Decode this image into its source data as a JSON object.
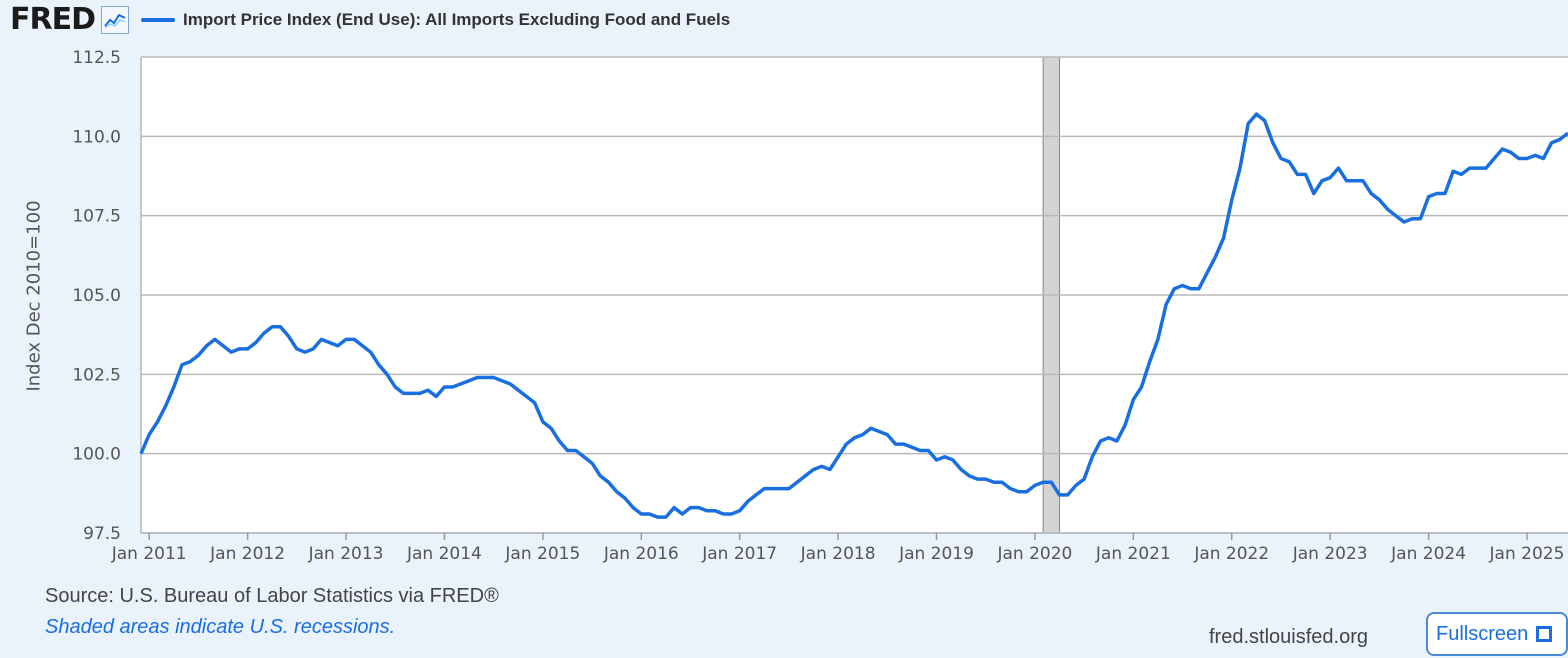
{
  "header": {
    "logo_text": "FRED",
    "graph_icon": "line-graph-icon"
  },
  "chart_data": {
    "type": "line",
    "series": [
      {
        "name": "Import Price Index (End Use): All Imports Excluding Food and Fuels",
        "color": "#1a6fe0",
        "points": [
          [
            "2010-12",
            100.0
          ],
          [
            "2011-01",
            100.6
          ],
          [
            "2011-02",
            101.0
          ],
          [
            "2011-03",
            101.5
          ],
          [
            "2011-04",
            102.1
          ],
          [
            "2011-05",
            102.8
          ],
          [
            "2011-06",
            102.9
          ],
          [
            "2011-07",
            103.1
          ],
          [
            "2011-08",
            103.4
          ],
          [
            "2011-09",
            103.6
          ],
          [
            "2011-10",
            103.4
          ],
          [
            "2011-11",
            103.2
          ],
          [
            "2011-12",
            103.3
          ],
          [
            "2012-01",
            103.3
          ],
          [
            "2012-02",
            103.5
          ],
          [
            "2012-03",
            103.8
          ],
          [
            "2012-04",
            104.0
          ],
          [
            "2012-05",
            104.0
          ],
          [
            "2012-06",
            103.7
          ],
          [
            "2012-07",
            103.3
          ],
          [
            "2012-08",
            103.2
          ],
          [
            "2012-09",
            103.3
          ],
          [
            "2012-10",
            103.6
          ],
          [
            "2012-11",
            103.5
          ],
          [
            "2012-12",
            103.4
          ],
          [
            "2013-01",
            103.6
          ],
          [
            "2013-02",
            103.6
          ],
          [
            "2013-03",
            103.4
          ],
          [
            "2013-04",
            103.2
          ],
          [
            "2013-05",
            102.8
          ],
          [
            "2013-06",
            102.5
          ],
          [
            "2013-07",
            102.1
          ],
          [
            "2013-08",
            101.9
          ],
          [
            "2013-09",
            101.9
          ],
          [
            "2013-10",
            101.9
          ],
          [
            "2013-11",
            102.0
          ],
          [
            "2013-12",
            101.8
          ],
          [
            "2014-01",
            102.1
          ],
          [
            "2014-02",
            102.1
          ],
          [
            "2014-03",
            102.2
          ],
          [
            "2014-04",
            102.3
          ],
          [
            "2014-05",
            102.4
          ],
          [
            "2014-06",
            102.4
          ],
          [
            "2014-07",
            102.4
          ],
          [
            "2014-08",
            102.3
          ],
          [
            "2014-09",
            102.2
          ],
          [
            "2014-10",
            102.0
          ],
          [
            "2014-11",
            101.8
          ],
          [
            "2014-12",
            101.6
          ],
          [
            "2015-01",
            101.0
          ],
          [
            "2015-02",
            100.8
          ],
          [
            "2015-03",
            100.4
          ],
          [
            "2015-04",
            100.1
          ],
          [
            "2015-05",
            100.1
          ],
          [
            "2015-06",
            99.9
          ],
          [
            "2015-07",
            99.7
          ],
          [
            "2015-08",
            99.3
          ],
          [
            "2015-09",
            99.1
          ],
          [
            "2015-10",
            98.8
          ],
          [
            "2015-11",
            98.6
          ],
          [
            "2015-12",
            98.3
          ],
          [
            "2016-01",
            98.1
          ],
          [
            "2016-02",
            98.1
          ],
          [
            "2016-03",
            98.0
          ],
          [
            "2016-04",
            98.0
          ],
          [
            "2016-05",
            98.3
          ],
          [
            "2016-06",
            98.1
          ],
          [
            "2016-07",
            98.3
          ],
          [
            "2016-08",
            98.3
          ],
          [
            "2016-09",
            98.2
          ],
          [
            "2016-10",
            98.2
          ],
          [
            "2016-11",
            98.1
          ],
          [
            "2016-12",
            98.1
          ],
          [
            "2017-01",
            98.2
          ],
          [
            "2017-02",
            98.5
          ],
          [
            "2017-03",
            98.7
          ],
          [
            "2017-04",
            98.9
          ],
          [
            "2017-05",
            98.9
          ],
          [
            "2017-06",
            98.9
          ],
          [
            "2017-07",
            98.9
          ],
          [
            "2017-08",
            99.1
          ],
          [
            "2017-09",
            99.3
          ],
          [
            "2017-10",
            99.5
          ],
          [
            "2017-11",
            99.6
          ],
          [
            "2017-12",
            99.5
          ],
          [
            "2018-01",
            99.9
          ],
          [
            "2018-02",
            100.3
          ],
          [
            "2018-03",
            100.5
          ],
          [
            "2018-04",
            100.6
          ],
          [
            "2018-05",
            100.8
          ],
          [
            "2018-06",
            100.7
          ],
          [
            "2018-07",
            100.6
          ],
          [
            "2018-08",
            100.3
          ],
          [
            "2018-09",
            100.3
          ],
          [
            "2018-10",
            100.2
          ],
          [
            "2018-11",
            100.1
          ],
          [
            "2018-12",
            100.1
          ],
          [
            "2019-01",
            99.8
          ],
          [
            "2019-02",
            99.9
          ],
          [
            "2019-03",
            99.8
          ],
          [
            "2019-04",
            99.5
          ],
          [
            "2019-05",
            99.3
          ],
          [
            "2019-06",
            99.2
          ],
          [
            "2019-07",
            99.2
          ],
          [
            "2019-08",
            99.1
          ],
          [
            "2019-09",
            99.1
          ],
          [
            "2019-10",
            98.9
          ],
          [
            "2019-11",
            98.8
          ],
          [
            "2019-12",
            98.8
          ],
          [
            "2020-01",
            99.0
          ],
          [
            "2020-02",
            99.1
          ],
          [
            "2020-03",
            99.1
          ],
          [
            "2020-04",
            98.7
          ],
          [
            "2020-05",
            98.7
          ],
          [
            "2020-06",
            99.0
          ],
          [
            "2020-07",
            99.2
          ],
          [
            "2020-08",
            99.9
          ],
          [
            "2020-09",
            100.4
          ],
          [
            "2020-10",
            100.5
          ],
          [
            "2020-11",
            100.4
          ],
          [
            "2020-12",
            100.9
          ],
          [
            "2021-01",
            101.7
          ],
          [
            "2021-02",
            102.1
          ],
          [
            "2021-03",
            102.9
          ],
          [
            "2021-04",
            103.6
          ],
          [
            "2021-05",
            104.7
          ],
          [
            "2021-06",
            105.2
          ],
          [
            "2021-07",
            105.3
          ],
          [
            "2021-08",
            105.2
          ],
          [
            "2021-09",
            105.2
          ],
          [
            "2021-10",
            105.7
          ],
          [
            "2021-11",
            106.2
          ],
          [
            "2021-12",
            106.8
          ],
          [
            "2022-01",
            108.0
          ],
          [
            "2022-02",
            109.0
          ],
          [
            "2022-03",
            110.4
          ],
          [
            "2022-04",
            110.7
          ],
          [
            "2022-05",
            110.5
          ],
          [
            "2022-06",
            109.8
          ],
          [
            "2022-07",
            109.3
          ],
          [
            "2022-08",
            109.2
          ],
          [
            "2022-09",
            108.8
          ],
          [
            "2022-10",
            108.8
          ],
          [
            "2022-11",
            108.2
          ],
          [
            "2022-12",
            108.6
          ],
          [
            "2023-01",
            108.7
          ],
          [
            "2023-02",
            109.0
          ],
          [
            "2023-03",
            108.6
          ],
          [
            "2023-04",
            108.6
          ],
          [
            "2023-05",
            108.6
          ],
          [
            "2023-06",
            108.2
          ],
          [
            "2023-07",
            108.0
          ],
          [
            "2023-08",
            107.7
          ],
          [
            "2023-09",
            107.5
          ],
          [
            "2023-10",
            107.3
          ],
          [
            "2023-11",
            107.4
          ],
          [
            "2023-12",
            107.4
          ],
          [
            "2024-01",
            108.1
          ],
          [
            "2024-02",
            108.2
          ],
          [
            "2024-03",
            108.2
          ],
          [
            "2024-04",
            108.9
          ],
          [
            "2024-05",
            108.8
          ],
          [
            "2024-06",
            109.0
          ],
          [
            "2024-07",
            109.0
          ],
          [
            "2024-08",
            109.0
          ],
          [
            "2024-09",
            109.3
          ],
          [
            "2024-10",
            109.6
          ],
          [
            "2024-11",
            109.5
          ],
          [
            "2024-12",
            109.3
          ],
          [
            "2025-01",
            109.3
          ],
          [
            "2025-02",
            109.4
          ],
          [
            "2025-03",
            109.3
          ],
          [
            "2025-04",
            109.8
          ],
          [
            "2025-05",
            109.9
          ],
          [
            "2025-06",
            110.1
          ]
        ]
      }
    ],
    "xlabel": "",
    "ylabel": "Index Dec 2010=100",
    "x_range": [
      "2010-12",
      "2025-06"
    ],
    "ylim": [
      97.5,
      112.5
    ],
    "y_ticks": [
      "97.5",
      "100.0",
      "102.5",
      "105.0",
      "107.5",
      "110.0",
      "112.5"
    ],
    "x_ticks": [
      "Jan 2011",
      "Jan 2012",
      "Jan 2013",
      "Jan 2014",
      "Jan 2015",
      "Jan 2016",
      "Jan 2017",
      "Jan 2018",
      "Jan 2019",
      "Jan 2020",
      "Jan 2021",
      "Jan 2022",
      "Jan 2023",
      "Jan 2024",
      "Jan 2025"
    ],
    "recessions": [
      [
        "2020-02",
        "2020-04"
      ]
    ],
    "recession_color": "#d4d4d4",
    "grid": true
  },
  "footer": {
    "source": "Source: U.S. Bureau of Labor Statistics via FRED®",
    "recession_note": "Shaded areas indicate U.S. recessions.",
    "site": "fred.stlouisfed.org",
    "fullscreen_label": "Fullscreen",
    "fullscreen_icon": "fullscreen-icon"
  }
}
